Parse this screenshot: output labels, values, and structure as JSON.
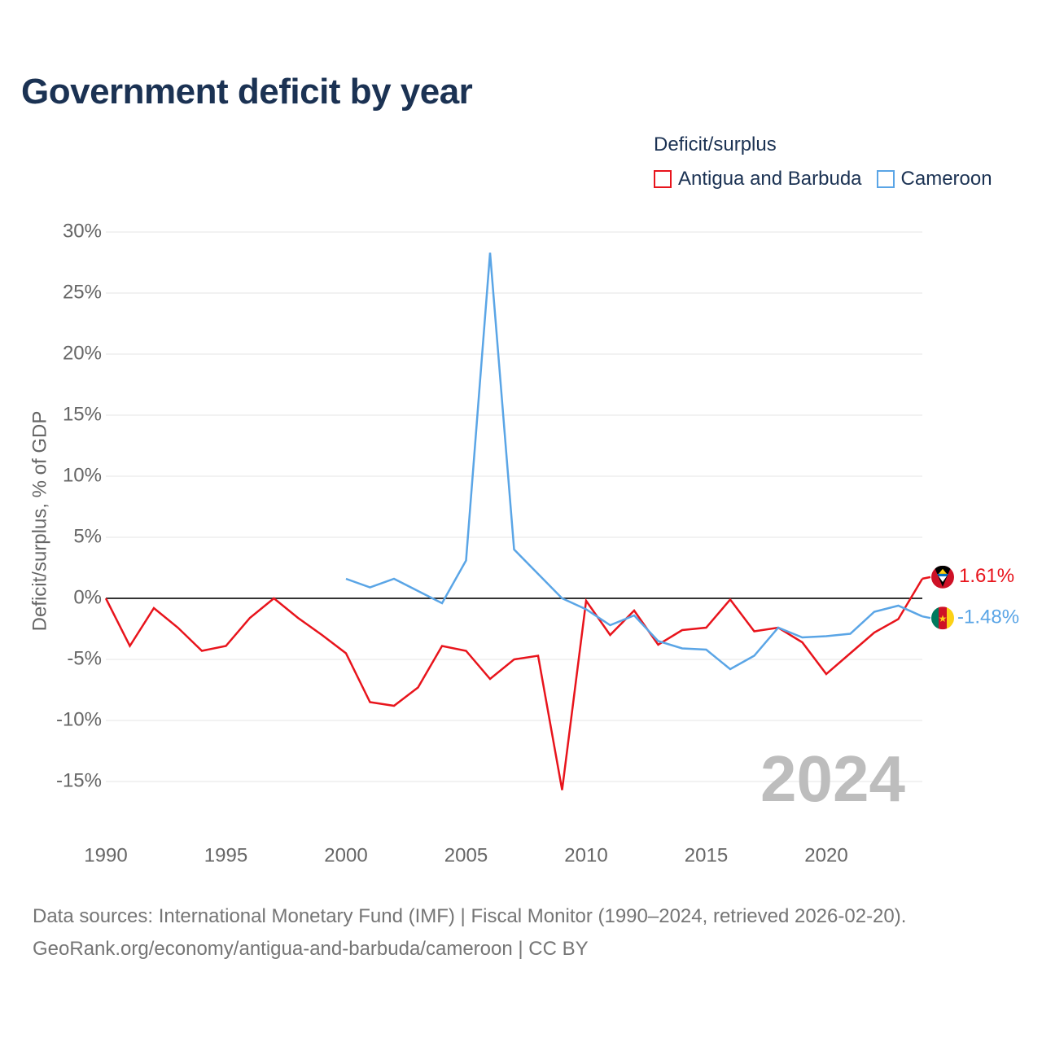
{
  "title": "Government deficit by year",
  "legend": {
    "title": "Deficit/surplus",
    "items": [
      {
        "label": "Antigua and Barbuda",
        "color": "#e8141c"
      },
      {
        "label": "Cameroon",
        "color": "#5aa5e6"
      }
    ]
  },
  "year_watermark": "2024",
  "source": {
    "line1": "Data sources: International Monetary Fund (IMF) | Fiscal Monitor (1990–2024, retrieved 2026-02-20).",
    "line2": "GeoRank.org/economy/antigua-and-barbuda/cameroon | CC BY"
  },
  "chart_data": {
    "type": "line",
    "title": "Government deficit by year",
    "xlabel": "",
    "ylabel": "Deficit/surplus, % of GDP",
    "xlim": [
      1990,
      2024
    ],
    "ylim": [
      -18,
      31
    ],
    "x_ticks": [
      1990,
      1995,
      2000,
      2005,
      2010,
      2015,
      2020
    ],
    "x_tick_labels": [
      "1990",
      "1995",
      "2000",
      "2005",
      "2010",
      "2015",
      "2020"
    ],
    "y_ticks": [
      30,
      25,
      20,
      15,
      10,
      5,
      0,
      -5,
      -10,
      -15
    ],
    "y_tick_labels": [
      "30%",
      "25%",
      "20%",
      "15%",
      "10%",
      "5%",
      "0%",
      "-5%",
      "-10%",
      "-15%"
    ],
    "grid": true,
    "series": [
      {
        "name": "Antigua and Barbuda",
        "color": "#e8141c",
        "end_label": "1.61%",
        "points": [
          [
            1990,
            0.0
          ],
          [
            1991,
            -3.9
          ],
          [
            1992,
            -0.8
          ],
          [
            1993,
            -2.4
          ],
          [
            1994,
            -4.3
          ],
          [
            1995,
            -3.9
          ],
          [
            1996,
            -1.6
          ],
          [
            1997,
            0.0
          ],
          [
            1998,
            -1.6
          ],
          [
            1999,
            -3.0
          ],
          [
            2000,
            -4.5
          ],
          [
            2001,
            -8.5
          ],
          [
            2002,
            -8.8
          ],
          [
            2003,
            -7.3
          ],
          [
            2004,
            -3.9
          ],
          [
            2005,
            -4.3
          ],
          [
            2006,
            -6.6
          ],
          [
            2007,
            -5.0
          ],
          [
            2008,
            -4.7
          ],
          [
            2009,
            -15.7
          ],
          [
            2010,
            -0.2
          ],
          [
            2011,
            -3.0
          ],
          [
            2012,
            -1.0
          ],
          [
            2013,
            -3.8
          ],
          [
            2014,
            -2.6
          ],
          [
            2015,
            -2.4
          ],
          [
            2016,
            -0.1
          ],
          [
            2017,
            -2.7
          ],
          [
            2018,
            -2.4
          ],
          [
            2019,
            -3.6
          ],
          [
            2020,
            -6.2
          ],
          [
            2021,
            -4.5
          ],
          [
            2022,
            -2.8
          ],
          [
            2023,
            -1.7
          ],
          [
            2024,
            1.61
          ]
        ]
      },
      {
        "name": "Cameroon",
        "color": "#5aa5e6",
        "end_label": "-1.48%",
        "points": [
          [
            2000,
            1.6
          ],
          [
            2001,
            0.9
          ],
          [
            2002,
            1.6
          ],
          [
            2003,
            0.6
          ],
          [
            2004,
            -0.4
          ],
          [
            2005,
            3.1
          ],
          [
            2006,
            28.3
          ],
          [
            2007,
            4.0
          ],
          [
            2008,
            2.0
          ],
          [
            2009,
            0.0
          ],
          [
            2010,
            -0.9
          ],
          [
            2011,
            -2.2
          ],
          [
            2012,
            -1.4
          ],
          [
            2013,
            -3.5
          ],
          [
            2014,
            -4.1
          ],
          [
            2015,
            -4.2
          ],
          [
            2016,
            -5.8
          ],
          [
            2017,
            -4.7
          ],
          [
            2018,
            -2.4
          ],
          [
            2019,
            -3.2
          ],
          [
            2020,
            -3.1
          ],
          [
            2021,
            -2.9
          ],
          [
            2022,
            -1.1
          ],
          [
            2023,
            -0.6
          ],
          [
            2024,
            -1.48
          ]
        ]
      }
    ]
  }
}
